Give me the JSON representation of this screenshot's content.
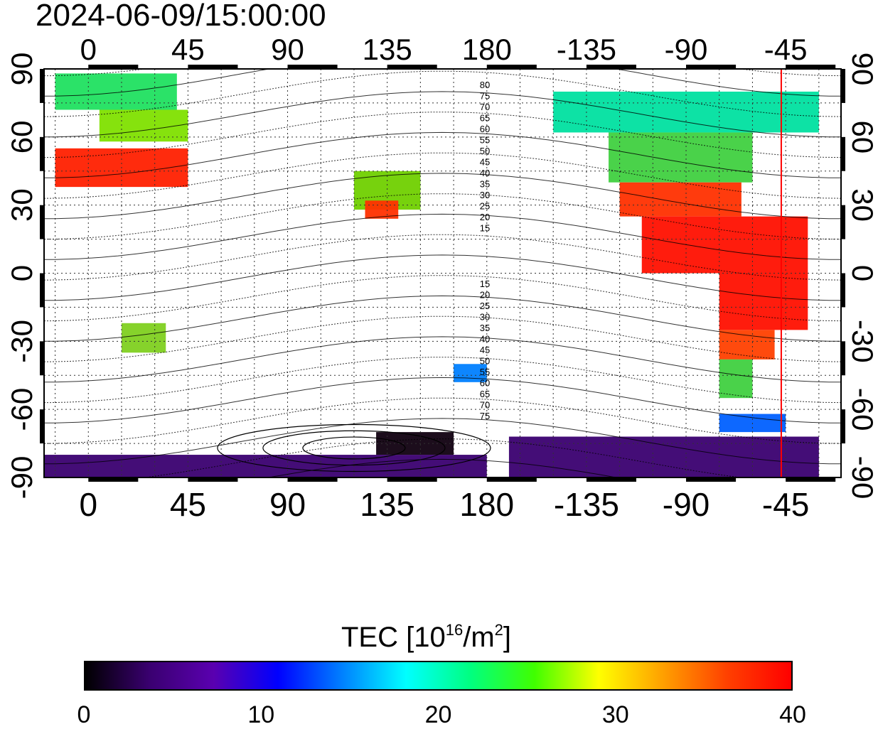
{
  "title": "2024-06-09/15:00:00",
  "map": {
    "lon_ticks_top": [
      "0",
      "45",
      "90",
      "135",
      "180",
      "-135",
      "-90",
      "-45"
    ],
    "lon_ticks_bottom": [
      "0",
      "45",
      "90",
      "135",
      "180",
      "-135",
      "-90",
      "-45"
    ],
    "lat_ticks_left": [
      "90",
      "60",
      "30",
      "0",
      "-30",
      "-60",
      "-90"
    ],
    "lat_ticks_right": [
      "90",
      "60",
      "30",
      "0",
      "-30",
      "-60",
      "-90"
    ],
    "contour_labels_north": [
      "80",
      "75",
      "70",
      "65",
      "60",
      "55",
      "50",
      "45",
      "40",
      "35",
      "30",
      "25",
      "20",
      "15"
    ],
    "contour_labels_south": [
      "15",
      "20",
      "25",
      "30",
      "35",
      "40",
      "45",
      "50",
      "55",
      "60",
      "65",
      "70",
      "75"
    ],
    "marker_line_longitude": -47,
    "marker_line_color": "#ff0000"
  },
  "colorbar": {
    "title_main": "TEC  [10",
    "title_exp": "16",
    "title_unit": "/m",
    "title_exp2": "2",
    "title_end": "]",
    "ticks": [
      "0",
      "10",
      "20",
      "30",
      "40"
    ],
    "colors": [
      "#000000",
      "#3a0070",
      "#5a00b0",
      "#0000ff",
      "#0080ff",
      "#00ffff",
      "#00ff80",
      "#40ff00",
      "#ffff00",
      "#ffa000",
      "#ff4000",
      "#ff0000"
    ]
  }
}
